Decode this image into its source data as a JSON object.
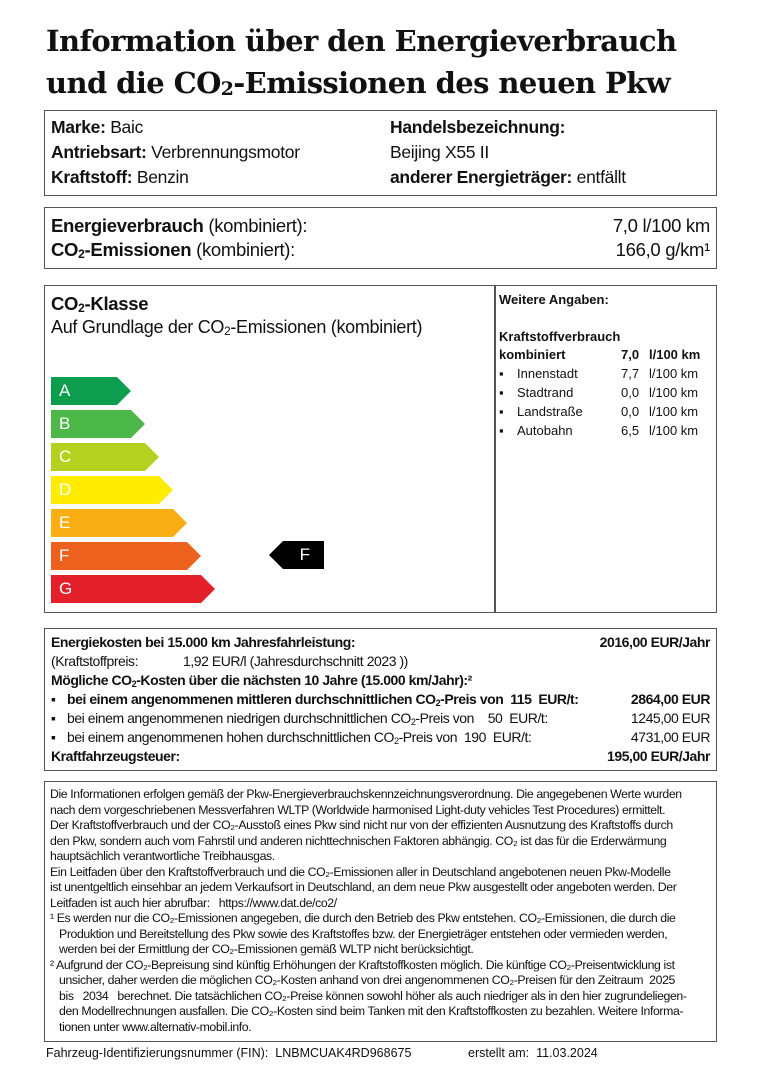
{
  "title": {
    "line1": "Information über den Energieverbrauch",
    "line2_pre": "und die CO",
    "line2_sub": "2",
    "line2_post": "-Emissionen des neuen Pkw"
  },
  "vehicle": {
    "marke_label": "Marke:",
    "marke": "Baic",
    "antrieb_label": "Antriebsart:",
    "antrieb": "Verbrennungsmotor",
    "kraftstoff_label": "Kraftstoff:",
    "kraftstoff": "Benzin",
    "handel_label": "Handelsbezeichnung:",
    "handel": "Beijing X55 II",
    "anderer_label": "anderer Energieträger:",
    "anderer": "entfällt"
  },
  "consumption": {
    "energie_label": "Energieverbrauch",
    "energie_suffix": "(kombiniert):",
    "energie_value": "7,0 l/100 km",
    "co2_label_pre": "CO",
    "co2_label_sub": "2",
    "co2_label_post": "-Emissionen",
    "co2_suffix": "(kombiniert):",
    "co2_value": "166,0 g/km¹"
  },
  "co2_class": {
    "heading_pre": "CO",
    "heading_sub": "2",
    "heading_post": "-Klasse",
    "subheading_pre": "Auf Grundlage der CO",
    "subheading_sub": "2",
    "subheading_post": "-Emissionen (kombiniert)",
    "classes": [
      {
        "label": "A",
        "color": "#0d9d4f"
      },
      {
        "label": "B",
        "color": "#4cb848"
      },
      {
        "label": "C",
        "color": "#b5d11f"
      },
      {
        "label": "D",
        "color": "#ffec00"
      },
      {
        "label": "E",
        "color": "#f9ae14"
      },
      {
        "label": "F",
        "color": "#ec611e"
      },
      {
        "label": "G",
        "color": "#e3202a"
      }
    ],
    "current": "F"
  },
  "weitere": {
    "heading": "Weitere Angaben:",
    "kv_heading": "Kraftstoffverbrauch",
    "kombiniert_label": "kombiniert",
    "kombiniert_value": "7,0",
    "unit": "l/100 km",
    "items": [
      {
        "label": "Innenstadt",
        "value": "7,7"
      },
      {
        "label": "Stadtrand",
        "value": "0,0"
      },
      {
        "label": "Landstraße",
        "value": "0,0"
      },
      {
        "label": "Autobahn",
        "value": "6,5"
      }
    ]
  },
  "costs": {
    "energie_label": "Energiekosten bei 15.000 km Jahresfahrleistung:",
    "energie_value": "2016,00 EUR/Jahr",
    "preis_label": "(Kraftstoffpreis:",
    "preis_value": "1,92 EUR/l (Jahresdurchschnitt  2023 ))",
    "co2_heading_pre": "Mögliche CO",
    "co2_heading_sub": "2",
    "co2_heading_post": "-Kosten über die nächsten 10 Jahre (15.000 km/Jahr):²",
    "rows": [
      {
        "pre": "bei einem angenommenen mittleren durchschnittlichen CO",
        "post": "-Preis von  115  EUR/t:",
        "value": "2864,00 EUR",
        "bold": true
      },
      {
        "pre": "bei einem angenommenen niedrigen durchschnittlichen CO",
        "post": "-Preis von    50  EUR/t:",
        "value": "1245,00 EUR",
        "bold": false
      },
      {
        "pre": "bei einem angenommenen hohen durchschnittlichen CO",
        "post": "-Preis von  190  EUR/t:",
        "value": "4731,00 EUR",
        "bold": false
      }
    ],
    "steuer_label": "Kraftfahrzeugsteuer:",
    "steuer_value": "195,00 EUR/Jahr"
  },
  "info_lines": [
    "Die Informationen erfolgen gemäß der Pkw-Energieverbrauchskennzeichnungsverordnung. Die angegebenen Werte wurden",
    "nach dem vorgeschriebenen Messverfahren WLTP (Worldwide harmonised Light-duty vehicles Test Procedures) ermittelt.",
    "Der Kraftstoffverbrauch und der CO₂-Ausstoß eines Pkw sind nicht nur von der effizienten Ausnutzung des Kraftstoffs durch",
    "den Pkw, sondern auch vom Fahrstil und anderen nichttechnischen Faktoren abhängig. CO₂ ist das für die Erderwärmung",
    "hauptsächlich verantwortliche Treibhausgas.",
    "Ein Leitfaden über den Kraftstoffverbrauch und die CO₂-Emissionen aller in Deutschland angebotenen neuen Pkw-Modelle",
    "ist unentgeltlich einsehbar an jedem Verkaufsort in Deutschland, an dem neue Pkw ausgestellt oder angeboten werden. Der",
    "Leitfaden ist auch hier abrufbar:   https://www.dat.de/co2/",
    "¹ Es werden nur die CO₂-Emissionen angegeben, die durch den Betrieb des Pkw entstehen. CO₂-Emissionen, die durch die",
    "   Produktion und Bereitstellung des Pkw sowie des Kraftstoffes bzw. der Energieträger entstehen oder vermieden werden,",
    "   werden bei der Ermittlung der CO₂-Emissionen gemäß WLTP nicht berücksichtigt.",
    "² Aufgrund der CO₂-Bepreisung sind künftig Erhöhungen der Kraftstoffkosten möglich. Die künftige CO₂-Preisentwicklung ist",
    "   unsicher, daher werden die möglichen CO₂-Kosten anhand von drei angenommenen CO₂-Preisen für den Zeitraum  2025",
    "   bis   2034   berechnet. Die tatsächlichen CO₂-Preise können sowohl höher als auch niedriger als in den hier zugrundeliegen-",
    "   den Modellrechnungen ausfallen. Die CO₂-Kosten sind beim Tanken mit den Kraftstoffkosten zu bezahlen. Weitere Informa-",
    "   tionen unter www.alternativ-mobil.info."
  ],
  "footer": {
    "fin_label": "Fahrzeug-Identifizierungsnummer (FIN):",
    "fin": "LNBMCUAK4RD968675",
    "erstellt_label": "erstellt am:",
    "erstellt": "11.03.2024"
  }
}
